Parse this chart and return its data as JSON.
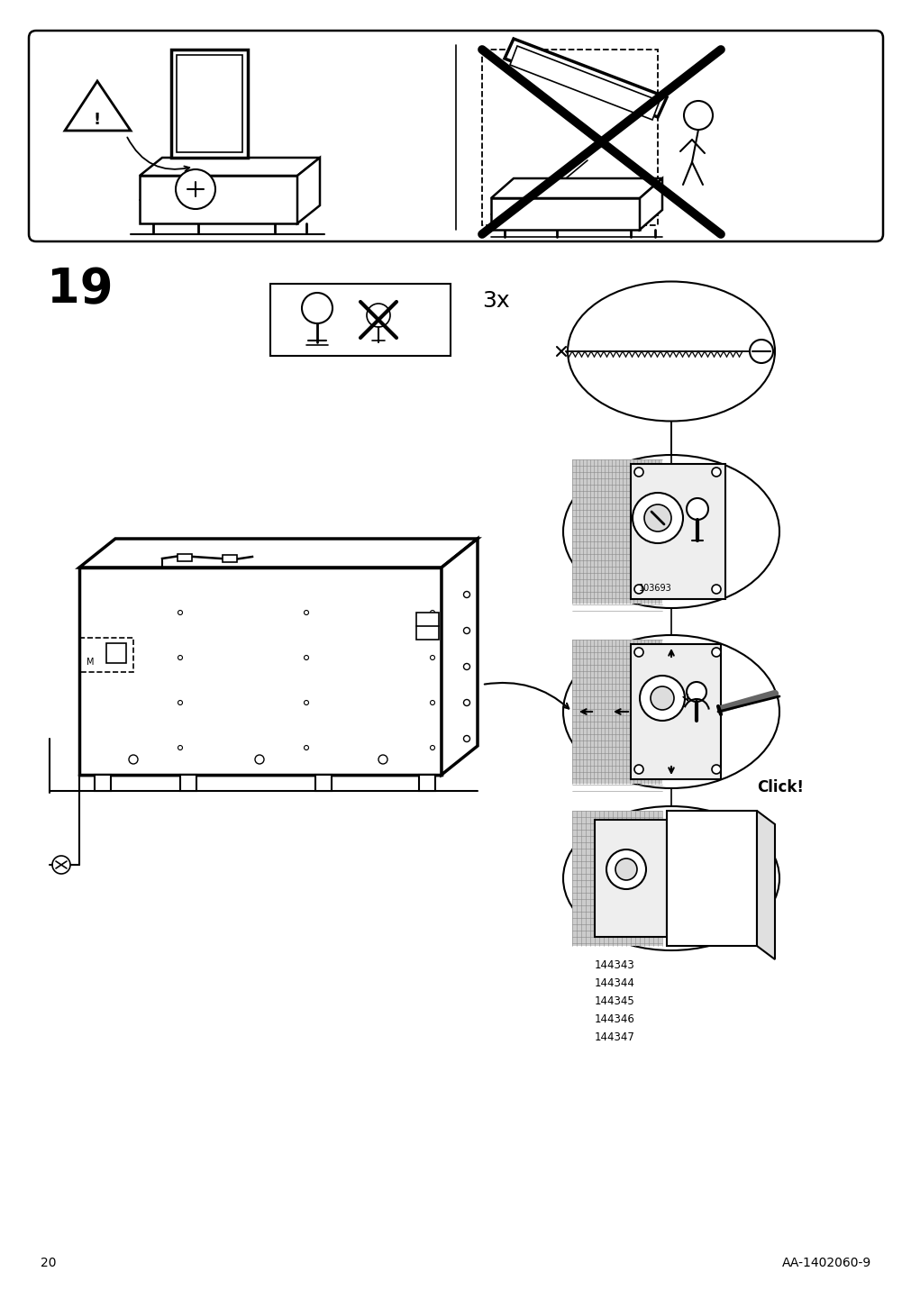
{
  "page_number": "20",
  "page_code": "AA-1402060-9",
  "step_number": "19",
  "quantity_label": "3x",
  "click_label": "Click!",
  "part_number_1": "103693",
  "part_numbers": [
    "144343",
    "144344",
    "144345",
    "144346",
    "144347"
  ],
  "bg_color": "#ffffff",
  "line_color": "#000000",
  "step_font_size": 38,
  "page_font_size": 10
}
